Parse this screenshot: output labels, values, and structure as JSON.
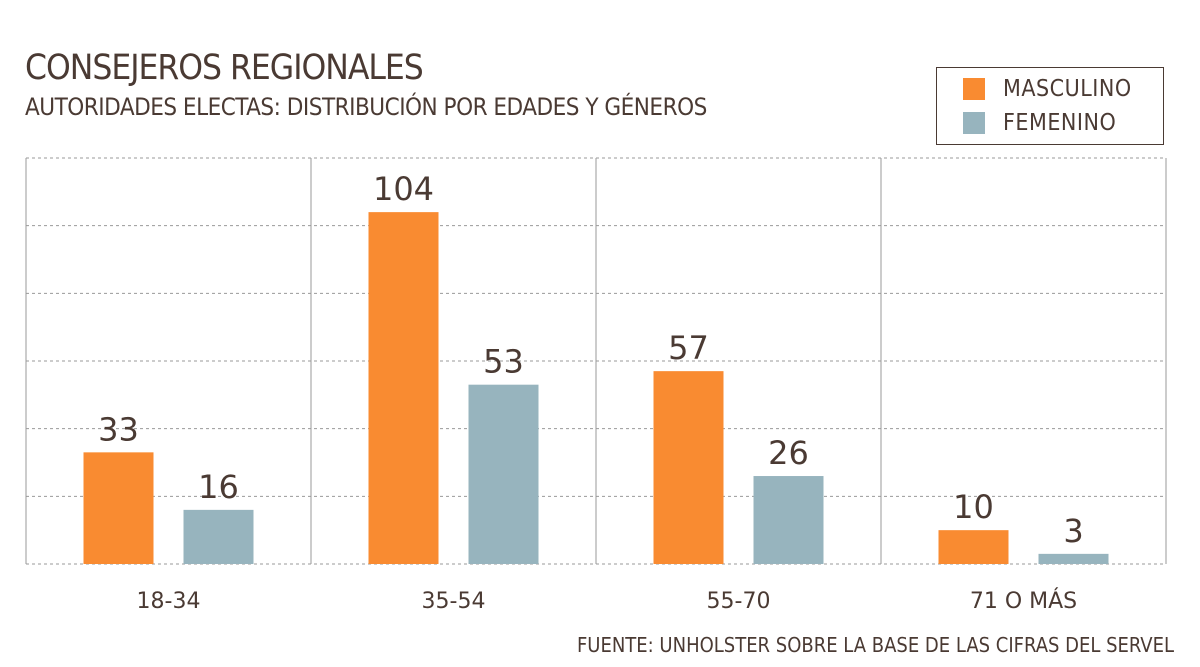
{
  "chart_data": {
    "type": "bar",
    "title": "CONSEJEROS REGIONALES",
    "subtitle": "AUTORIDADES ELECTAS: DISTRIBUCIÓN POR EDADES Y GÉNEROS",
    "categories": [
      "18-34",
      "35-54",
      "55-70",
      "71 O MÁS"
    ],
    "series": [
      {
        "name": "MASCULINO",
        "color": "#f98b31",
        "values": [
          33,
          104,
          57,
          10
        ]
      },
      {
        "name": "FEMENINO",
        "color": "#97b4be",
        "values": [
          16,
          53,
          26,
          3
        ]
      }
    ],
    "ylim": [
      0,
      120
    ],
    "grid": true,
    "legend_position": "top-right",
    "source": "FUENTE: UNHOLSTER SOBRE LA BASE DE LAS CIFRAS DEL SERVEL"
  }
}
